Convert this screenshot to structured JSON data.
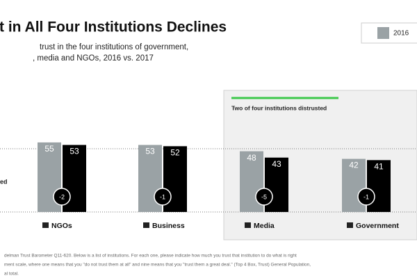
{
  "chart_data": {
    "type": "bar",
    "title": "t in All Four Institutions Declines",
    "subtitle": [
      "trust in the four institutions of government,",
      ", media and NGOs, 2016 vs. 2017"
    ],
    "side_label": "ed",
    "annotation": "Two of four institutions distrusted",
    "categories": [
      "NGOs",
      "Business",
      "Media",
      "Government"
    ],
    "series": [
      {
        "name": "2016",
        "color": "#9aa2a5",
        "values": [
          55,
          53,
          48,
          42
        ]
      },
      {
        "color": "#000000",
        "values": [
          53,
          52,
          43,
          41
        ]
      }
    ],
    "changes": [
      -2,
      -1,
      -5,
      -1
    ],
    "threshold": 50,
    "footnote": [
      "delman Trust Barometer Q11-620. Below is a list of institutions. For each one, please indicate how much you trust that institution to do what is right",
      "ment scale, where one means that you \"do not trust them at all\" and nine means that you \"trust them a great deal.\" (Top 4 Box, Trust) General Population,",
      "al total."
    ]
  }
}
